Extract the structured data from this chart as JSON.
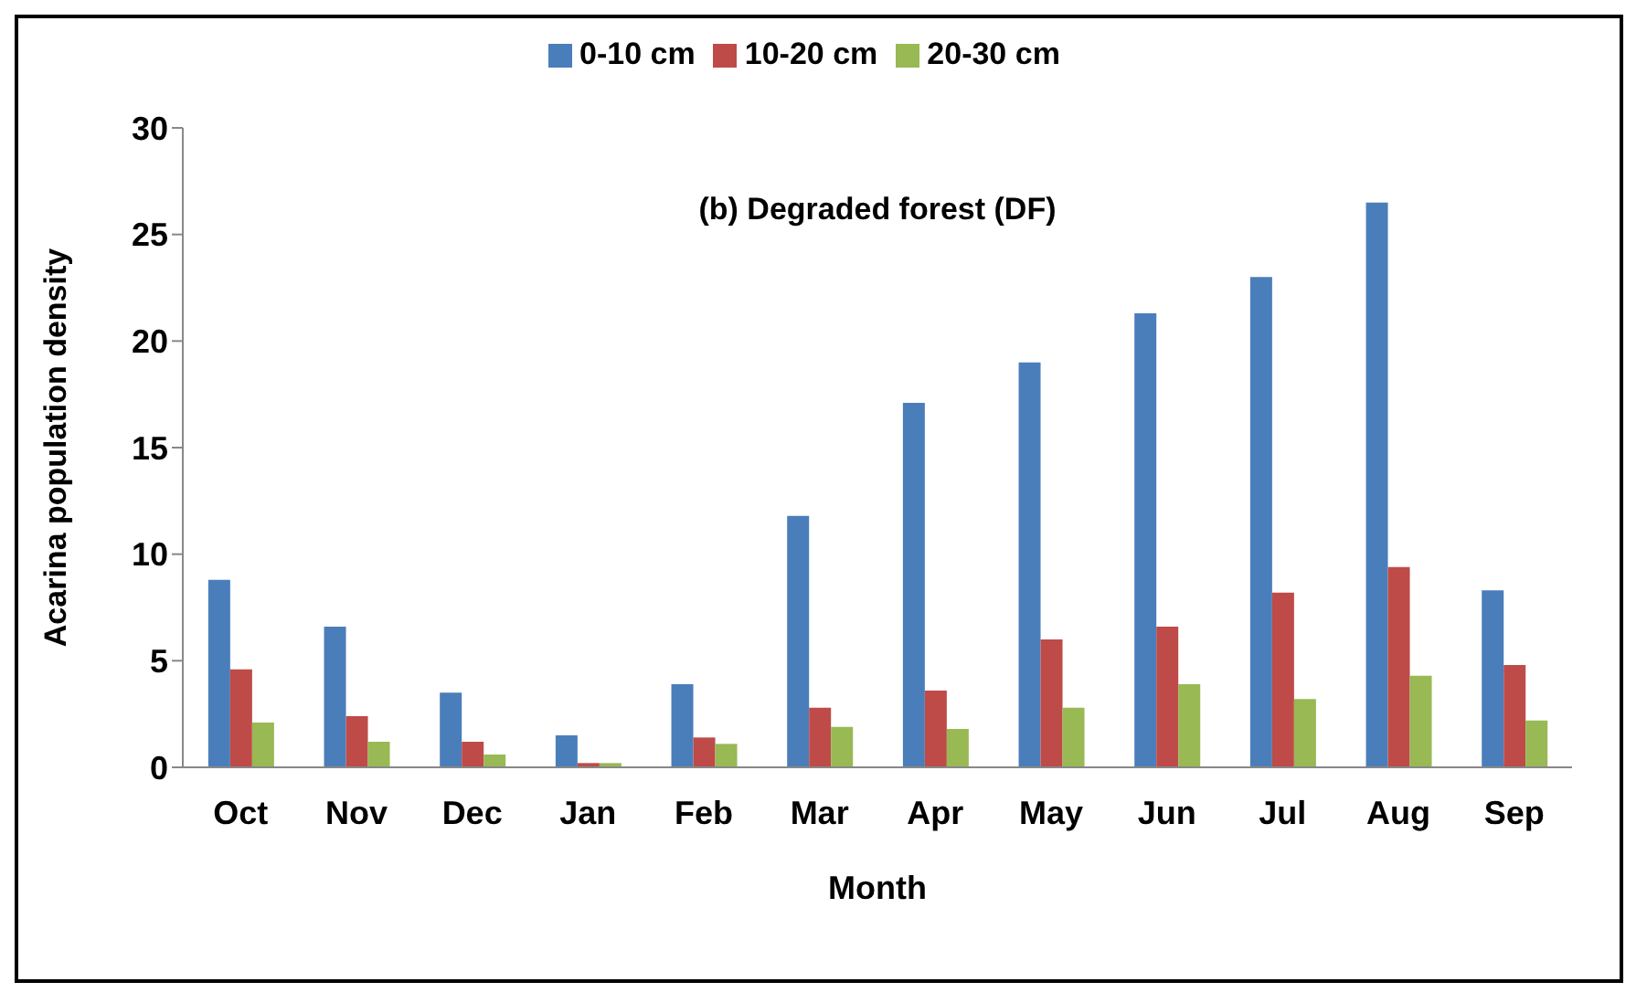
{
  "chart_data": {
    "type": "bar",
    "title": "(b) Degraded forest (DF)",
    "xlabel": "Month",
    "ylabel": "Acarina population density",
    "categories": [
      "Oct",
      "Nov",
      "Dec",
      "Jan",
      "Feb",
      "Mar",
      "Apr",
      "May",
      "Jun",
      "Jul",
      "Aug",
      "Sep"
    ],
    "series": [
      {
        "name": "0-10 cm",
        "color": "#4a7ebb",
        "values": [
          8.8,
          6.6,
          3.5,
          1.5,
          3.9,
          11.8,
          17.1,
          19.0,
          21.3,
          23.0,
          26.5,
          8.3
        ]
      },
      {
        "name": "10-20 cm",
        "color": "#be4b48",
        "values": [
          4.6,
          2.4,
          1.2,
          0.2,
          1.4,
          2.8,
          3.6,
          6.0,
          6.6,
          8.2,
          9.4,
          4.8
        ]
      },
      {
        "name": "20-30 cm",
        "color": "#98b954",
        "values": [
          2.1,
          1.2,
          0.6,
          0.2,
          1.1,
          1.9,
          1.8,
          2.8,
          3.9,
          3.2,
          4.3,
          2.2
        ]
      }
    ],
    "ylim": [
      0,
      30
    ],
    "yticks": [
      0,
      5,
      10,
      15,
      20,
      25,
      30
    ],
    "grid": false,
    "legend": "top"
  }
}
